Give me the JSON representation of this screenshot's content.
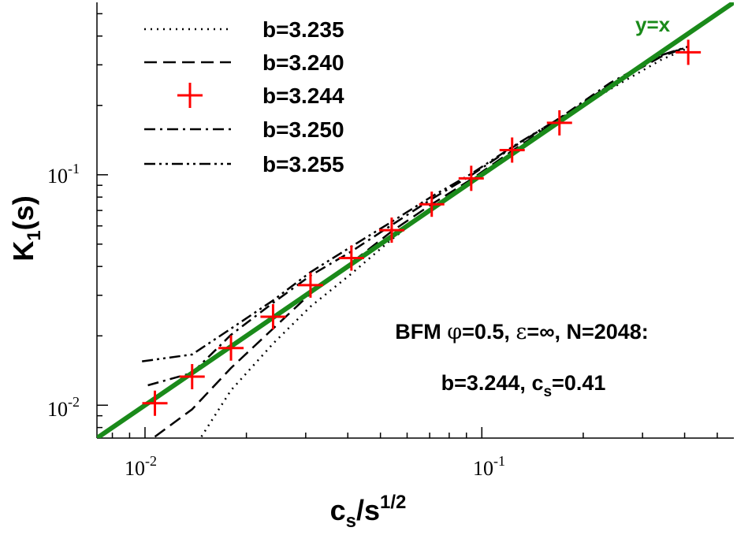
{
  "chart_data": {
    "type": "line",
    "xlabel": {
      "main": "c",
      "sub": "s",
      "rest": "/s",
      "sup": "1/2"
    },
    "ylabel": {
      "main": "K",
      "sub": "1",
      "rest": "(s)"
    },
    "xscale": "log",
    "yscale": "log",
    "xlim": [
      0.0072,
      0.56
    ],
    "ylim": [
      0.0072,
      0.56
    ],
    "xticks": [
      {
        "base": "10",
        "exp": "-2",
        "value": 0.01
      },
      {
        "base": "10",
        "exp": "-1",
        "value": 0.1
      }
    ],
    "yticks": [
      {
        "base": "10",
        "exp": "-2",
        "value": 0.01
      },
      {
        "base": "10",
        "exp": "-1",
        "value": 0.1
      }
    ],
    "grid": false,
    "legend_position": "top-left",
    "reference_line": {
      "label": "y=x",
      "color": "#1a8a1a"
    },
    "series": [
      {
        "name": "b=3.235",
        "style": "dotted",
        "color": "#000000",
        "x": [
          0.0147,
          0.018,
          0.024,
          0.031,
          0.041,
          0.054,
          0.071,
          0.093,
          0.123,
          0.17,
          0.24,
          0.34,
          0.41
        ],
        "y": [
          0.0073,
          0.0116,
          0.0185,
          0.0268,
          0.0372,
          0.0525,
          0.0712,
          0.093,
          0.124,
          0.171,
          0.235,
          0.315,
          0.355
        ]
      },
      {
        "name": "b=3.240",
        "style": "dashed",
        "color": "#000000",
        "x": [
          0.0107,
          0.0138,
          0.018,
          0.024,
          0.031,
          0.041,
          0.054,
          0.071,
          0.093,
          0.123,
          0.17,
          0.24,
          0.34,
          0.41
        ],
        "y": [
          0.0073,
          0.0096,
          0.0145,
          0.0215,
          0.0305,
          0.0415,
          0.0568,
          0.0745,
          0.0955,
          0.127,
          0.174,
          0.245,
          0.325,
          0.36
        ]
      },
      {
        "name": "b=3.244",
        "style": "markers",
        "color": "#ff0000",
        "x": [
          0.0107,
          0.0138,
          0.018,
          0.024,
          0.031,
          0.041,
          0.054,
          0.071,
          0.093,
          0.123,
          0.17,
          0.41
        ],
        "y": [
          0.0102,
          0.0133,
          0.0177,
          0.0242,
          0.0332,
          0.0435,
          0.0575,
          0.0745,
          0.0965,
          0.128,
          0.168,
          0.34
        ]
      },
      {
        "name": "b=3.250",
        "style": "dashdot",
        "color": "#000000",
        "x": [
          0.0102,
          0.0138,
          0.018,
          0.024,
          0.031,
          0.041,
          0.054,
          0.071,
          0.093,
          0.123,
          0.17,
          0.24,
          0.34,
          0.41
        ],
        "y": [
          0.0122,
          0.0138,
          0.0202,
          0.0278,
          0.0365,
          0.0465,
          0.0605,
          0.0785,
          0.0995,
          0.131,
          0.176,
          0.25,
          0.33,
          0.36
        ]
      },
      {
        "name": "b=3.255",
        "style": "dashdotdot",
        "color": "#000000",
        "x": [
          0.0098,
          0.0138,
          0.018,
          0.024,
          0.031,
          0.041,
          0.054,
          0.071,
          0.093,
          0.123,
          0.17,
          0.24,
          0.34,
          0.41
        ],
        "y": [
          0.0155,
          0.0166,
          0.0215,
          0.0285,
          0.0378,
          0.0488,
          0.0625,
          0.0805,
          0.101,
          0.132,
          0.176,
          0.245,
          0.33,
          0.358
        ]
      }
    ],
    "annotation": {
      "line1": {
        "prefix": "BFM ",
        "phi": "φ",
        "phi_val": "=0.5, ",
        "eps": "ε",
        "eps_val": "=∞, N=2048:"
      },
      "line2": {
        "text": "b=3.244, c",
        "sub": "s",
        "rest": "=0.41"
      }
    }
  }
}
